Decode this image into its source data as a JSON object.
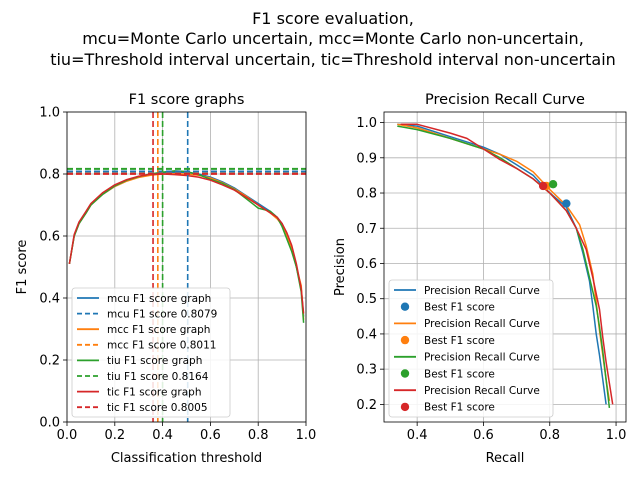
{
  "figure": {
    "title_lines": [
      "F1 score evaluation,",
      "mcu=Monte Carlo uncertain, mcc=Monte Carlo non-uncertain,",
      "tiu=Threshold interval uncertain, tic=Threshold interval non-uncertain"
    ]
  },
  "colors": {
    "mcu": "#1f77b4",
    "mcc": "#ff7f0e",
    "tiu": "#2ca02c",
    "tic": "#d62728",
    "grid": "#b0b0b0"
  },
  "chart_data": [
    {
      "type": "line",
      "title": "F1 score graphs",
      "xlabel": "Classification threshold",
      "ylabel": "F1 score",
      "xlim": [
        0,
        1
      ],
      "ylim": [
        0,
        1
      ],
      "xticks": [
        0.0,
        0.2,
        0.4,
        0.6,
        0.8,
        1.0
      ],
      "yticks": [
        0.0,
        0.2,
        0.4,
        0.6,
        0.8,
        1.0
      ],
      "tick_labels": [
        "0.0",
        "0.2",
        "0.4",
        "0.6",
        "0.8",
        "1.0"
      ],
      "grid": true,
      "legend_position": "lower-left",
      "series": [
        {
          "key": "mcu",
          "name": "mcu F1 score graph",
          "x": [
            0.01,
            0.03,
            0.05,
            0.08,
            0.1,
            0.15,
            0.2,
            0.25,
            0.3,
            0.35,
            0.4,
            0.45,
            0.5,
            0.55,
            0.6,
            0.65,
            0.7,
            0.75,
            0.8,
            0.85,
            0.88,
            0.9,
            0.92,
            0.94,
            0.96,
            0.98,
            0.99
          ],
          "y": [
            0.51,
            0.6,
            0.64,
            0.675,
            0.7,
            0.735,
            0.76,
            0.778,
            0.79,
            0.798,
            0.803,
            0.806,
            0.805,
            0.8,
            0.79,
            0.775,
            0.755,
            0.73,
            0.705,
            0.68,
            0.66,
            0.64,
            0.6,
            0.56,
            0.5,
            0.43,
            0.34
          ]
        },
        {
          "key": "mcc",
          "name": "mcc F1 score graph",
          "x": [
            0.01,
            0.03,
            0.05,
            0.08,
            0.1,
            0.15,
            0.2,
            0.25,
            0.3,
            0.35,
            0.4,
            0.45,
            0.5,
            0.55,
            0.6,
            0.65,
            0.7,
            0.75,
            0.8,
            0.85,
            0.88,
            0.9,
            0.92,
            0.94,
            0.96,
            0.98,
            0.99
          ],
          "y": [
            0.51,
            0.6,
            0.64,
            0.675,
            0.7,
            0.735,
            0.76,
            0.777,
            0.789,
            0.796,
            0.8,
            0.801,
            0.8,
            0.796,
            0.787,
            0.772,
            0.752,
            0.728,
            0.7,
            0.675,
            0.655,
            0.635,
            0.598,
            0.56,
            0.5,
            0.44,
            0.33
          ]
        },
        {
          "key": "tiu",
          "name": "tiu F1 score graph",
          "x": [
            0.01,
            0.03,
            0.05,
            0.08,
            0.1,
            0.15,
            0.2,
            0.25,
            0.3,
            0.35,
            0.4,
            0.45,
            0.5,
            0.55,
            0.6,
            0.65,
            0.7,
            0.75,
            0.8,
            0.85,
            0.88,
            0.9,
            0.92,
            0.94,
            0.96,
            0.98,
            0.99
          ],
          "y": [
            0.51,
            0.6,
            0.64,
            0.675,
            0.7,
            0.735,
            0.762,
            0.78,
            0.792,
            0.8,
            0.806,
            0.81,
            0.808,
            0.798,
            0.783,
            0.77,
            0.75,
            0.72,
            0.69,
            0.68,
            0.66,
            0.63,
            0.59,
            0.55,
            0.5,
            0.42,
            0.32
          ]
        },
        {
          "key": "tic",
          "name": "tic F1 score graph",
          "x": [
            0.01,
            0.03,
            0.05,
            0.08,
            0.1,
            0.15,
            0.2,
            0.25,
            0.3,
            0.35,
            0.4,
            0.45,
            0.5,
            0.55,
            0.6,
            0.65,
            0.7,
            0.75,
            0.8,
            0.85,
            0.88,
            0.9,
            0.92,
            0.94,
            0.96,
            0.98,
            0.99
          ],
          "y": [
            0.51,
            0.605,
            0.645,
            0.68,
            0.705,
            0.74,
            0.765,
            0.782,
            0.793,
            0.799,
            0.8,
            0.798,
            0.795,
            0.79,
            0.78,
            0.765,
            0.748,
            0.725,
            0.7,
            0.675,
            0.66,
            0.64,
            0.61,
            0.57,
            0.51,
            0.43,
            0.35
          ]
        }
      ],
      "best_lines": [
        {
          "key": "mcu",
          "name": "mcu F1 score 0.8079",
          "score": 0.8079,
          "threshold": 0.505
        },
        {
          "key": "mcc",
          "name": "mcc F1 score 0.8011",
          "score": 0.8011,
          "threshold": 0.38
        },
        {
          "key": "tiu",
          "name": "tiu F1 score 0.8164",
          "score": 0.8164,
          "threshold": 0.4
        },
        {
          "key": "tic",
          "name": "tic F1 score 0.8005",
          "score": 0.8005,
          "threshold": 0.36
        }
      ]
    },
    {
      "type": "line",
      "title": "Precision Recall Curve",
      "xlabel": "Recall",
      "ylabel": "Precision",
      "xlim": [
        0.3,
        1.03
      ],
      "ylim": [
        0.15,
        1.03
      ],
      "xticks": [
        0.4,
        0.6,
        0.8,
        1.0
      ],
      "xtick_labels": [
        "0.4",
        "0.6",
        "0.8",
        "1.0"
      ],
      "yticks": [
        0.2,
        0.3,
        0.4,
        0.5,
        0.6,
        0.7,
        0.8,
        0.9,
        1.0
      ],
      "ytick_labels": [
        "0.2",
        "0.3",
        "0.4",
        "0.5",
        "0.6",
        "0.7",
        "0.8",
        "0.9",
        "1.0"
      ],
      "grid": true,
      "legend_position": "lower-left",
      "series": [
        {
          "key": "mcu",
          "name": "Precision Recall Curve",
          "x": [
            0.34,
            0.4,
            0.5,
            0.6,
            0.65,
            0.7,
            0.75,
            0.8,
            0.85,
            0.88,
            0.9,
            0.92,
            0.93,
            0.94,
            0.95,
            0.96,
            0.97
          ],
          "y": [
            0.995,
            0.99,
            0.96,
            0.93,
            0.91,
            0.88,
            0.85,
            0.8,
            0.76,
            0.7,
            0.63,
            0.55,
            0.48,
            0.4,
            0.34,
            0.27,
            0.2
          ]
        },
        {
          "key": "mcc",
          "name": "Precision Recall Curve",
          "x": [
            0.34,
            0.4,
            0.5,
            0.6,
            0.65,
            0.7,
            0.75,
            0.8,
            0.85,
            0.89,
            0.91,
            0.93,
            0.94,
            0.95,
            0.96,
            0.97,
            0.98
          ],
          "y": [
            0.995,
            0.985,
            0.955,
            0.925,
            0.91,
            0.89,
            0.86,
            0.81,
            0.765,
            0.71,
            0.65,
            0.57,
            0.49,
            0.41,
            0.34,
            0.27,
            0.21
          ]
        },
        {
          "key": "tiu",
          "name": "Precision Recall Curve",
          "x": [
            0.34,
            0.4,
            0.5,
            0.6,
            0.65,
            0.7,
            0.75,
            0.8,
            0.85,
            0.88,
            0.9,
            0.92,
            0.94,
            0.95,
            0.96,
            0.97,
            0.98
          ],
          "y": [
            0.99,
            0.98,
            0.955,
            0.925,
            0.9,
            0.87,
            0.84,
            0.8,
            0.75,
            0.7,
            0.64,
            0.56,
            0.48,
            0.42,
            0.35,
            0.27,
            0.19
          ]
        },
        {
          "key": "tic",
          "name": "Precision Recall Curve",
          "x": [
            0.35,
            0.4,
            0.5,
            0.55,
            0.6,
            0.65,
            0.7,
            0.75,
            0.8,
            0.85,
            0.88,
            0.91,
            0.93,
            0.95,
            0.96,
            0.97,
            0.98,
            0.99
          ],
          "y": [
            0.995,
            0.995,
            0.97,
            0.955,
            0.925,
            0.895,
            0.87,
            0.84,
            0.8,
            0.75,
            0.7,
            0.64,
            0.56,
            0.47,
            0.39,
            0.32,
            0.26,
            0.2
          ]
        }
      ],
      "best_points": [
        {
          "key": "mcu",
          "name": "Best F1 score",
          "recall": 0.85,
          "precision": 0.77
        },
        {
          "key": "mcc",
          "name": "Best F1 score",
          "recall": 0.79,
          "precision": 0.82
        },
        {
          "key": "tiu",
          "name": "Best F1 score",
          "recall": 0.81,
          "precision": 0.825
        },
        {
          "key": "tic",
          "name": "Best F1 score",
          "recall": 0.78,
          "precision": 0.82
        }
      ]
    }
  ]
}
